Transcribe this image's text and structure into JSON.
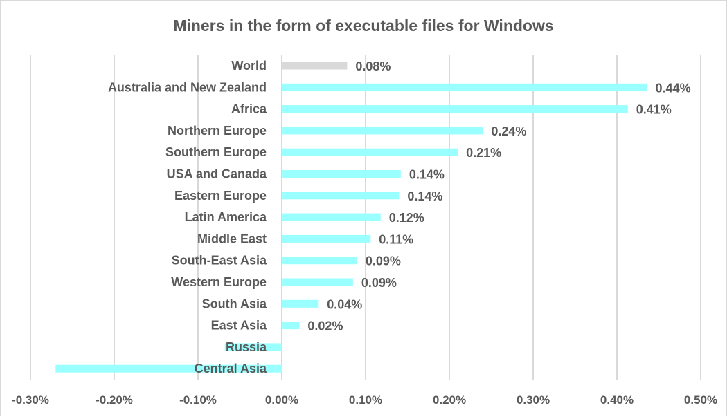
{
  "chart_data": {
    "type": "bar",
    "orientation": "horizontal",
    "title": "Miners in the form of executable files for Windows",
    "xlabel": "",
    "ylabel": "",
    "xlim": [
      -0.3,
      0.5
    ],
    "grid": true,
    "x_ticks": [
      "-0.30%",
      "-0.20%",
      "-0.10%",
      "0.00%",
      "0.10%",
      "0.20%",
      "0.30%",
      "0.40%",
      "0.50%"
    ],
    "x_tick_values": [
      -0.3,
      -0.2,
      -0.1,
      0,
      0.1,
      0.2,
      0.3,
      0.4,
      0.5
    ],
    "categories": [
      "World",
      "Australia and New Zealand",
      "Africa",
      "Northern Europe",
      "Southern Europe",
      "USA and Canada",
      "Eastern Europe",
      "Latin America",
      "Middle East",
      "South-East Asia",
      "Western Europe",
      "South Asia",
      "East Asia",
      "Russia",
      "Central Asia"
    ],
    "values": [
      0.078,
      0.436,
      0.413,
      0.24,
      0.21,
      0.142,
      0.14,
      0.118,
      0.106,
      0.09,
      0.085,
      0.044,
      0.021,
      -0.068,
      -0.27
    ],
    "data_labels": [
      "0.08%",
      "0.44%",
      "0.41%",
      "0.24%",
      "0.21%",
      "0.14%",
      "0.14%",
      "0.12%",
      "0.11%",
      "0.09%",
      "0.09%",
      "0.04%",
      "0.02%",
      "",
      ""
    ],
    "colors": {
      "highlight": "#d9d9d9",
      "bar": "#99ffff",
      "grid": "#d9d9d9",
      "text": "#595959"
    }
  }
}
